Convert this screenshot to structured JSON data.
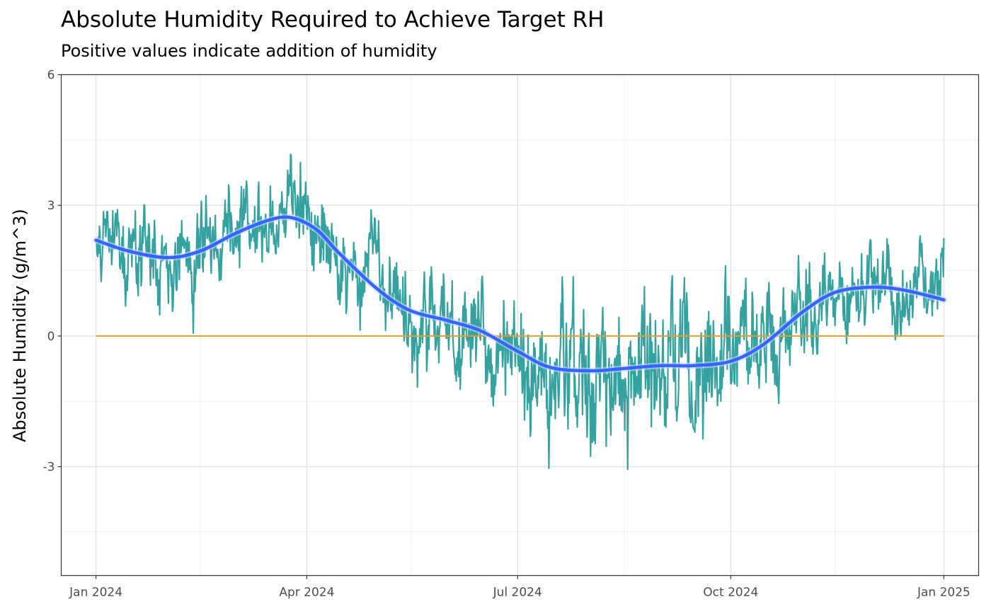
{
  "chart_data": {
    "type": "line",
    "title": "Absolute Humidity Required to Achieve Target RH",
    "subtitle": "Positive values indicate addition of humidity",
    "xlabel": "",
    "ylabel": "Absolute Humidity (g/m^3)",
    "x_ticks": [
      "Jan 2024",
      "Apr 2024",
      "Jul 2024",
      "Oct 2024",
      "Jan 2025"
    ],
    "x_tick_dates": [
      "2024-01-01",
      "2024-04-01",
      "2024-07-01",
      "2024-10-01",
      "2025-01-01"
    ],
    "x_minor_dates": [
      "2024-02-15",
      "2024-05-16",
      "2024-08-16",
      "2024-11-15"
    ],
    "y_ticks": [
      -3,
      0,
      3,
      6
    ],
    "y_minor": [
      -4.5,
      -1.5,
      1.5,
      4.5
    ],
    "xlim": [
      "2023-12-17",
      "2025-01-16"
    ],
    "ylim": [
      -5.5,
      6
    ],
    "grid": true,
    "legend": "none",
    "series": [
      {
        "color": "#2a9d9a",
        "role": "hourly",
        "x_points": [
          "2024-01-01",
          "2024-01-15",
          "2024-02-01",
          "2024-02-15",
          "2024-03-01",
          "2024-03-15",
          "2024-03-25",
          "2024-04-05",
          "2024-04-15",
          "2024-05-01",
          "2024-05-15",
          "2024-06-01",
          "2024-06-15",
          "2024-07-01",
          "2024-07-15",
          "2024-08-01",
          "2024-08-15",
          "2024-09-01",
          "2024-09-15",
          "2024-10-01",
          "2024-10-15",
          "2024-11-01",
          "2024-11-15",
          "2024-12-01",
          "2024-12-15",
          "2025-01-01"
        ],
        "y_points": [
          2.2,
          1.9,
          1.8,
          1.9,
          2.3,
          2.7,
          3.4,
          2.8,
          1.6,
          0.9,
          0.6,
          0.4,
          0.2,
          -0.3,
          -0.8,
          -0.9,
          -1.3,
          -0.8,
          -0.7,
          -0.6,
          -0.4,
          0.3,
          1.0,
          1.2,
          0.9,
          1.9
        ],
        "amplitude_points": [
          0.8,
          1.0,
          1.1,
          1.1,
          1.0,
          1.0,
          1.0,
          1.0,
          1.0,
          1.1,
          1.2,
          1.3,
          1.4,
          1.4,
          1.5,
          1.6,
          1.6,
          1.6,
          1.5,
          1.4,
          1.2,
          1.1,
          0.9,
          0.9,
          1.0,
          0.8
        ]
      },
      {
        "color": "#3366ff",
        "role": "smooth trend",
        "x": [
          "2024-01-01",
          "2024-01-15",
          "2024-02-01",
          "2024-02-15",
          "2024-03-01",
          "2024-03-15",
          "2024-03-25",
          "2024-04-05",
          "2024-04-15",
          "2024-05-01",
          "2024-05-15",
          "2024-06-01",
          "2024-06-15",
          "2024-07-01",
          "2024-07-15",
          "2024-08-01",
          "2024-08-15",
          "2024-09-01",
          "2024-09-15",
          "2024-10-01",
          "2024-10-15",
          "2024-11-01",
          "2024-11-15",
          "2024-12-01",
          "2024-12-15",
          "2025-01-01"
        ],
        "y": [
          2.2,
          1.95,
          1.8,
          1.95,
          2.35,
          2.65,
          2.72,
          2.45,
          1.9,
          1.1,
          0.6,
          0.35,
          0.12,
          -0.35,
          -0.72,
          -0.8,
          -0.75,
          -0.68,
          -0.68,
          -0.58,
          -0.2,
          0.55,
          1.0,
          1.12,
          1.05,
          0.83
        ]
      },
      {
        "color": "#e0a030",
        "role": "zero reference",
        "x": [
          "2024-01-01",
          "2025-01-01"
        ],
        "y": [
          0,
          0
        ]
      }
    ]
  }
}
